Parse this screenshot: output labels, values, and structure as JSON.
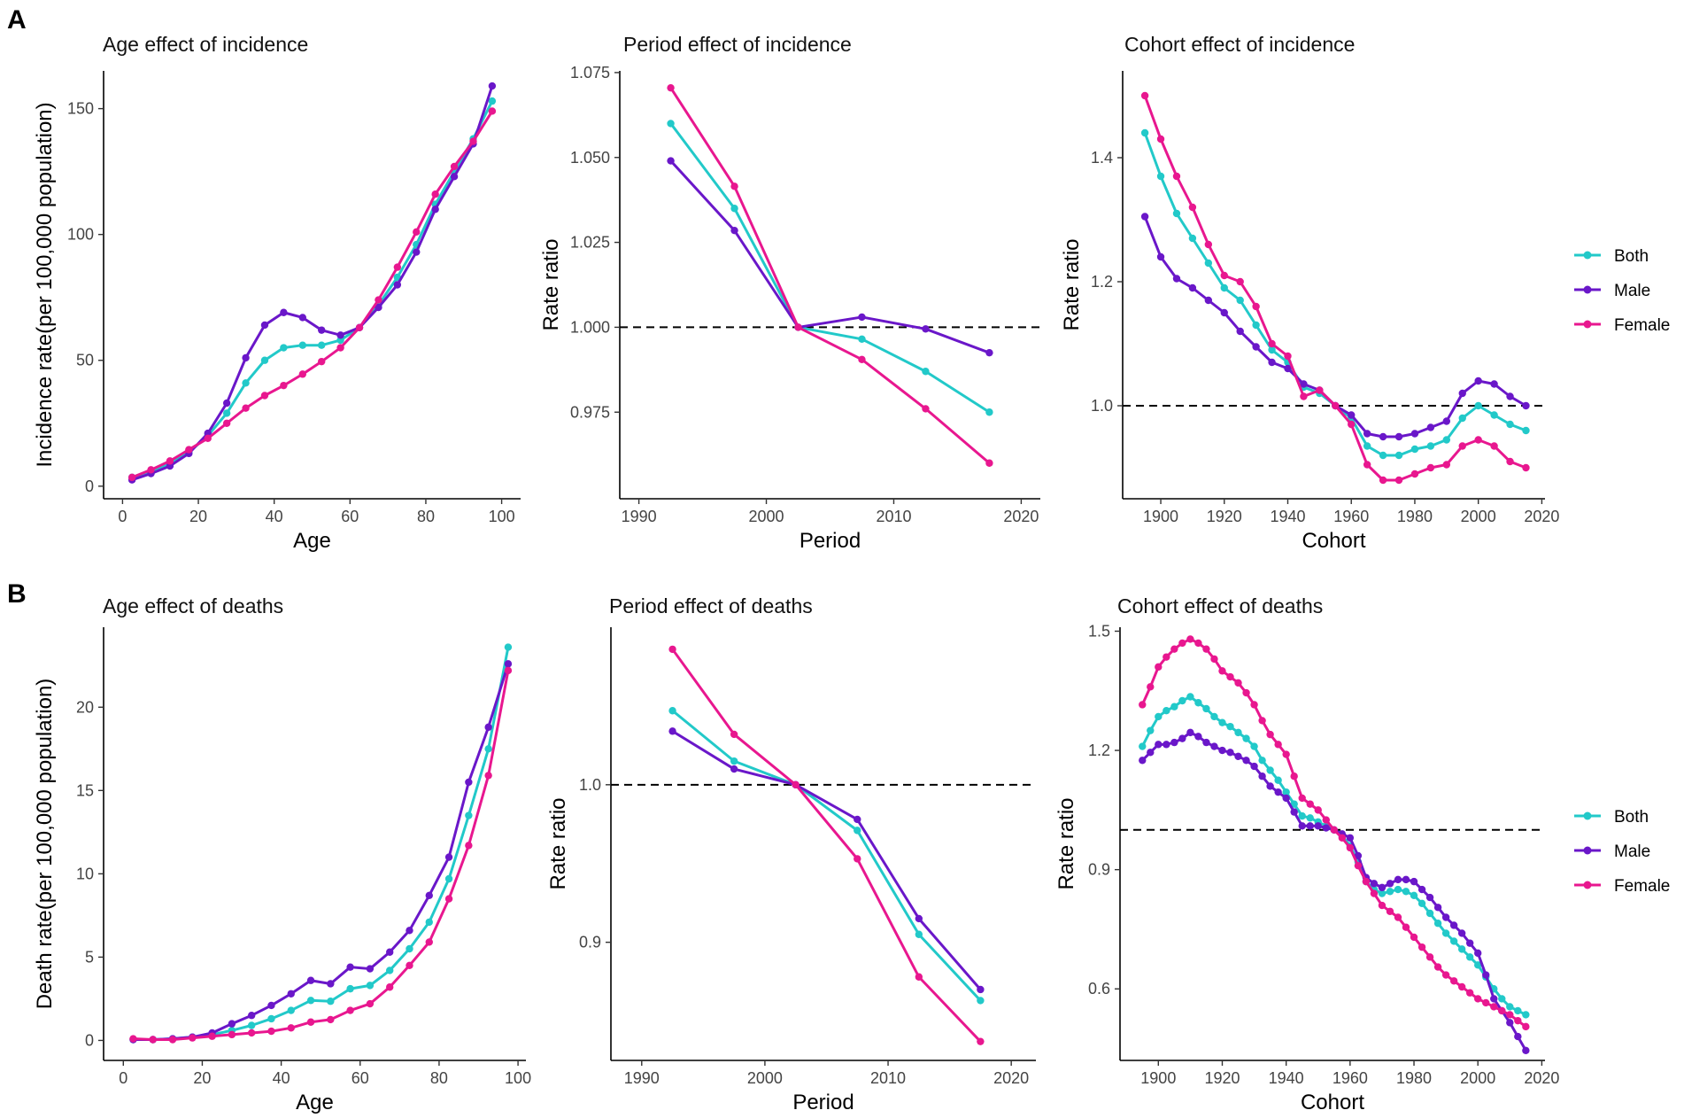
{
  "panel_labels": [
    "A",
    "B"
  ],
  "legend": {
    "items": [
      {
        "name": "Both",
        "color": "#22C9C9"
      },
      {
        "name": "Male",
        "color": "#6A17C9"
      },
      {
        "name": "Female",
        "color": "#E8178F"
      }
    ]
  },
  "chart_data": [
    {
      "type": "line",
      "title": "Age effect of incidence",
      "xlabel": "Age",
      "ylabel": "Incidence rate(per 100,000 population)",
      "xlim": [
        -5,
        105
      ],
      "ylim": [
        -5,
        165
      ],
      "xticks": [
        0,
        20,
        40,
        60,
        80,
        100
      ],
      "yticks": [
        0,
        50,
        100,
        150
      ],
      "ytick_labels": [
        "0",
        "50",
        "100",
        "150"
      ],
      "x": [
        2.5,
        7.5,
        12.5,
        17.5,
        22.5,
        27.5,
        32.5,
        37.5,
        42.5,
        47.5,
        52.5,
        57.5,
        62.5,
        67.5,
        72.5,
        77.5,
        82.5,
        87.5,
        92.5,
        97.5
      ],
      "series": [
        {
          "name": "Both",
          "values": [
            3.5,
            6,
            9,
            13.5,
            20,
            29,
            41,
            50,
            55,
            56,
            56,
            58,
            63,
            72,
            83,
            96,
            112,
            125,
            138,
            153
          ]
        },
        {
          "name": "Male",
          "values": [
            2.5,
            5,
            8,
            13,
            21,
            33,
            51,
            64,
            69,
            67,
            62,
            60,
            63,
            71,
            80,
            93,
            110,
            123,
            136,
            159
          ]
        },
        {
          "name": "Female",
          "values": [
            3.5,
            6.5,
            10,
            14.5,
            19,
            25,
            31,
            36,
            40,
            44.5,
            49.5,
            55,
            63,
            74,
            87,
            101,
            116,
            127,
            137,
            149
          ]
        }
      ],
      "hline": null
    },
    {
      "type": "line",
      "title": "Period effect of incidence",
      "xlabel": "Period",
      "ylabel": "Rate ratio",
      "xlim": [
        1988.5,
        2021.5
      ],
      "ylim": [
        0.9495,
        1.0755
      ],
      "xticks": [
        1990,
        2000,
        2010,
        2020
      ],
      "yticks": [
        0.975,
        1.0,
        1.025,
        1.05,
        1.075
      ],
      "ytick_labels": [
        "0.975",
        "1.000",
        "1.025",
        "1.050",
        "1.075"
      ],
      "x": [
        1992.5,
        1997.5,
        2002.5,
        2007.5,
        2012.5,
        2017.5
      ],
      "series": [
        {
          "name": "Both",
          "values": [
            1.06,
            1.035,
            1.0,
            0.9965,
            0.987,
            0.975
          ]
        },
        {
          "name": "Male",
          "values": [
            1.049,
            1.0285,
            1.0,
            1.003,
            0.9995,
            0.9925
          ]
        },
        {
          "name": "Female",
          "values": [
            1.0705,
            1.0415,
            1.0,
            0.9905,
            0.976,
            0.96
          ]
        }
      ],
      "hline": 1.0
    },
    {
      "type": "line",
      "title": "Cohort effect of incidence",
      "xlabel": "Cohort",
      "ylabel": "Rate ratio",
      "xlim": [
        1888,
        2021
      ],
      "ylim": [
        0.85,
        1.54
      ],
      "xticks": [
        1900,
        1920,
        1940,
        1960,
        1980,
        2000,
        2020
      ],
      "yticks": [
        1.0,
        1.2,
        1.4
      ],
      "ytick_labels": [
        "1.0",
        "1.2",
        "1.4"
      ],
      "x": [
        1895,
        1900,
        1905,
        1910,
        1915,
        1920,
        1925,
        1930,
        1935,
        1940,
        1945,
        1950,
        1955,
        1960,
        1965,
        1970,
        1975,
        1980,
        1985,
        1990,
        1995,
        2000,
        2005,
        2010,
        2015
      ],
      "series": [
        {
          "name": "Both",
          "values": [
            1.44,
            1.37,
            1.31,
            1.27,
            1.23,
            1.19,
            1.17,
            1.13,
            1.09,
            1.07,
            1.03,
            1.02,
            1.0,
            0.98,
            0.935,
            0.92,
            0.92,
            0.93,
            0.935,
            0.945,
            0.98,
            1.0,
            0.985,
            0.97,
            0.96
          ]
        },
        {
          "name": "Male",
          "values": [
            1.305,
            1.24,
            1.205,
            1.19,
            1.17,
            1.15,
            1.12,
            1.095,
            1.07,
            1.06,
            1.035,
            1.025,
            1.0,
            0.985,
            0.955,
            0.95,
            0.95,
            0.955,
            0.965,
            0.975,
            1.02,
            1.04,
            1.035,
            1.015,
            1.0
          ]
        },
        {
          "name": "Female",
          "values": [
            1.5,
            1.43,
            1.37,
            1.32,
            1.26,
            1.21,
            1.2,
            1.16,
            1.1,
            1.08,
            1.015,
            1.025,
            1.0,
            0.97,
            0.905,
            0.88,
            0.88,
            0.89,
            0.9,
            0.905,
            0.935,
            0.945,
            0.935,
            0.91,
            0.9
          ]
        }
      ],
      "hline": 1.0
    },
    {
      "type": "line",
      "title": "Age effect of deaths",
      "xlabel": "Age",
      "ylabel": "Death rate(per 100,000 population)",
      "xlim": [
        -5,
        102
      ],
      "ylim": [
        -1.2,
        24.8
      ],
      "xticks": [
        0,
        20,
        40,
        60,
        80,
        100
      ],
      "yticks": [
        0,
        5,
        10,
        15,
        20
      ],
      "ytick_labels": [
        "0",
        "5",
        "10",
        "15",
        "20"
      ],
      "x": [
        2.5,
        7.5,
        12.5,
        17.5,
        22.5,
        27.5,
        32.5,
        37.5,
        42.5,
        47.5,
        52.5,
        57.5,
        62.5,
        67.5,
        72.5,
        77.5,
        82.5,
        87.5,
        92.5,
        97.5
      ],
      "series": [
        {
          "name": "Both",
          "values": [
            0.05,
            0.05,
            0.1,
            0.2,
            0.35,
            0.6,
            0.9,
            1.3,
            1.8,
            2.4,
            2.35,
            3.1,
            3.3,
            4.2,
            5.5,
            7.1,
            9.7,
            13.5,
            17.5,
            23.6
          ]
        },
        {
          "name": "Male",
          "values": [
            0.05,
            0.05,
            0.1,
            0.2,
            0.45,
            1.0,
            1.5,
            2.1,
            2.8,
            3.6,
            3.4,
            4.4,
            4.3,
            5.3,
            6.6,
            8.7,
            11.0,
            15.5,
            18.8,
            22.6
          ]
        },
        {
          "name": "Female",
          "values": [
            0.1,
            0.05,
            0.05,
            0.15,
            0.25,
            0.35,
            0.45,
            0.55,
            0.75,
            1.1,
            1.25,
            1.8,
            2.2,
            3.2,
            4.5,
            5.9,
            8.5,
            11.7,
            15.9,
            22.2
          ]
        }
      ],
      "hline": null
    },
    {
      "type": "line",
      "title": "Period effect of deaths",
      "xlabel": "Period",
      "ylabel": "Rate ratio",
      "xlim": [
        1987.5,
        2022
      ],
      "ylim": [
        0.825,
        1.1
      ],
      "xticks": [
        1990,
        2000,
        2010,
        2020
      ],
      "yticks": [
        0.9,
        1.0
      ],
      "ytick_labels": [
        "0.9",
        "1.0"
      ],
      "x": [
        1992.5,
        1997.5,
        2002.5,
        2007.5,
        2012.5,
        2017.5
      ],
      "series": [
        {
          "name": "Both",
          "values": [
            1.047,
            1.015,
            1.0,
            0.971,
            0.905,
            0.863
          ]
        },
        {
          "name": "Male",
          "values": [
            1.034,
            1.01,
            1.0,
            0.978,
            0.915,
            0.87
          ]
        },
        {
          "name": "Female",
          "values": [
            1.086,
            1.032,
            1.0,
            0.953,
            0.878,
            0.837
          ]
        }
      ],
      "hline": 1.0
    },
    {
      "type": "line",
      "title": "Cohort effect of deaths",
      "xlabel": "Cohort",
      "ylabel": "Rate ratio",
      "xlim": [
        1888,
        2021
      ],
      "ylim": [
        0.42,
        1.51
      ],
      "xticks": [
        1900,
        1920,
        1940,
        1960,
        1980,
        2000,
        2020
      ],
      "yticks": [
        0.6,
        0.9,
        1.2,
        1.5
      ],
      "ytick_labels": [
        "0.6",
        "0.9",
        "1.2",
        "1.5"
      ],
      "x": [
        1895,
        1897.5,
        1900,
        1902.5,
        1905,
        1907.5,
        1910,
        1912.5,
        1915,
        1917.5,
        1920,
        1922.5,
        1925,
        1927.5,
        1930,
        1932.5,
        1935,
        1937.5,
        1940,
        1942.5,
        1945,
        1947.5,
        1950,
        1952.5,
        1955,
        1957.5,
        1960,
        1962.5,
        1965,
        1967.5,
        1970,
        1972.5,
        1975,
        1977.5,
        1980,
        1982.5,
        1985,
        1987.5,
        1990,
        1992.5,
        1995,
        1997.5,
        2000,
        2002.5,
        2005,
        2007.5,
        2010,
        2012.5,
        2015
      ],
      "series": [
        {
          "name": "Both",
          "values": [
            1.21,
            1.25,
            1.285,
            1.3,
            1.31,
            1.325,
            1.335,
            1.32,
            1.305,
            1.285,
            1.27,
            1.26,
            1.245,
            1.23,
            1.21,
            1.175,
            1.15,
            1.125,
            1.095,
            1.065,
            1.035,
            1.03,
            1.02,
            1.01,
            1.0,
            0.985,
            0.96,
            0.92,
            0.87,
            0.85,
            0.84,
            0.845,
            0.85,
            0.845,
            0.835,
            0.815,
            0.79,
            0.765,
            0.74,
            0.72,
            0.7,
            0.68,
            0.66,
            0.63,
            0.6,
            0.575,
            0.555,
            0.545,
            0.535
          ]
        },
        {
          "name": "Male",
          "values": [
            1.175,
            1.195,
            1.215,
            1.215,
            1.22,
            1.23,
            1.245,
            1.235,
            1.22,
            1.21,
            1.2,
            1.195,
            1.185,
            1.175,
            1.16,
            1.135,
            1.11,
            1.095,
            1.08,
            1.045,
            1.01,
            1.01,
            1.01,
            1.005,
            1.0,
            0.99,
            0.98,
            0.935,
            0.88,
            0.865,
            0.855,
            0.865,
            0.875,
            0.875,
            0.87,
            0.85,
            0.83,
            0.805,
            0.78,
            0.76,
            0.74,
            0.715,
            0.69,
            0.635,
            0.575,
            0.545,
            0.515,
            0.48,
            0.445
          ]
        },
        {
          "name": "Female",
          "values": [
            1.315,
            1.36,
            1.41,
            1.435,
            1.455,
            1.47,
            1.48,
            1.47,
            1.455,
            1.43,
            1.4,
            1.385,
            1.37,
            1.345,
            1.315,
            1.275,
            1.24,
            1.215,
            1.19,
            1.135,
            1.08,
            1.065,
            1.05,
            1.025,
            1.0,
            0.98,
            0.955,
            0.91,
            0.87,
            0.84,
            0.81,
            0.795,
            0.78,
            0.755,
            0.73,
            0.705,
            0.68,
            0.655,
            0.635,
            0.62,
            0.605,
            0.59,
            0.575,
            0.565,
            0.555,
            0.545,
            0.535,
            0.52,
            0.505
          ]
        }
      ],
      "hline": 1.0
    }
  ]
}
